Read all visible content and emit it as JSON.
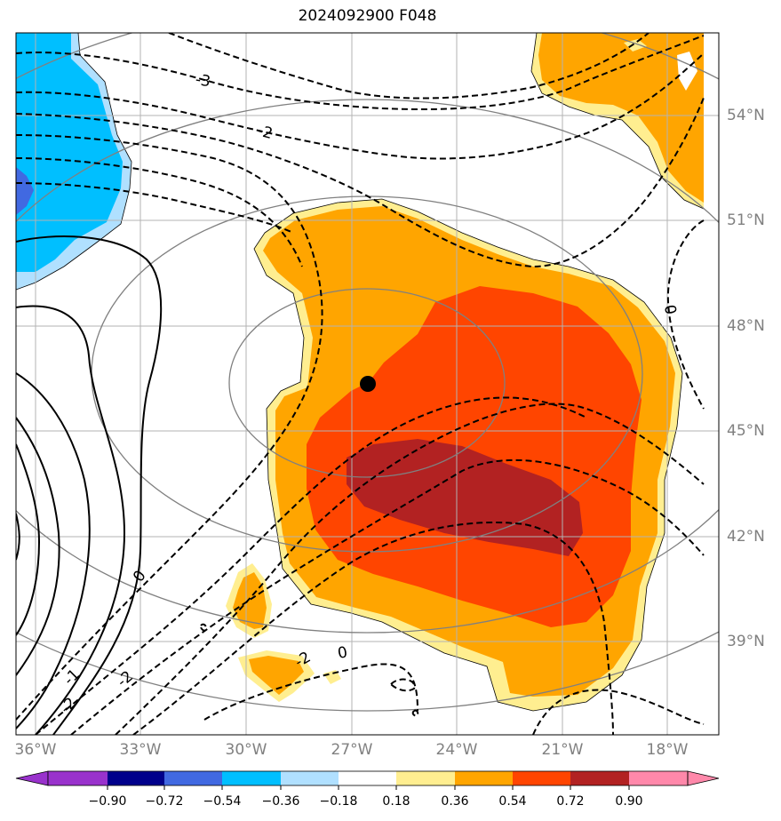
{
  "title": "2024092900 F048",
  "lon_labels": [
    "36°W",
    "33°W",
    "30°W",
    "27°W",
    "24°W",
    "21°W",
    "18°W"
  ],
  "lat_labels": [
    "54°N",
    "51°N",
    "48°N",
    "45°N",
    "42°N",
    "39°N"
  ],
  "contour_labels": [
    "-3",
    "-2",
    "0",
    "0",
    "-1",
    "-2",
    "-2",
    "0",
    "-2"
  ],
  "colorbar": {
    "tick_labels": [
      "−0.90",
      "−0.72",
      "−0.54",
      "−0.36",
      "−0.18",
      "0.18",
      "0.36",
      "0.54",
      "0.72",
      "0.90"
    ],
    "colors": [
      "#9932CC",
      "#00008B",
      "#4169E1",
      "#00BFFF",
      "#B0E0FF",
      "#FFFFFF",
      "#FFEE90",
      "#FFA500",
      "#FF4500",
      "#B22222",
      "#FF88AA"
    ]
  },
  "map": {
    "extent_lon": [
      -36.5,
      -16.5
    ],
    "extent_lat": [
      36.5,
      56.5
    ],
    "marker": {
      "name": "point-marker",
      "lon": -26.5,
      "lat": 46.4
    }
  }
}
